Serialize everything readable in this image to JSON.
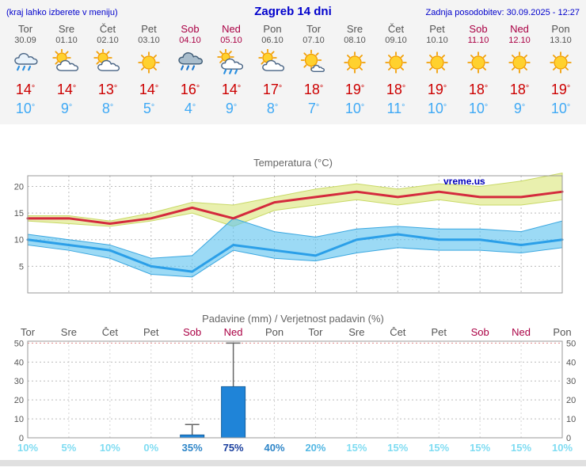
{
  "header": {
    "hint": "(kraj lahko izberete v meniju)",
    "title": "Zagreb 14 dni",
    "updated": "Zadnja posodobitev: 30.09.2025 - 12:27"
  },
  "units": {
    "degree": "°",
    "percent": "%"
  },
  "colors": {
    "link_blue": "#0000cc",
    "day_gray": "#555555",
    "weekend_red": "#aa0044",
    "hi_red": "#cc0000",
    "lo_blue": "#3fa9f5",
    "max_line": "#d42a3d",
    "min_line": "#2b9fe8",
    "max_band_fill": "#e9f0ae",
    "max_band_edge": "#c9d967",
    "min_band_fill": "#5fc3ef",
    "min_band_edge": "#3aa7e0",
    "bar_fill": "#1f84d8",
    "bar_edge": "#15619f",
    "whisker": "#666666",
    "grid": "#bbbbbb",
    "grid_50": "#e08888",
    "frame": "#999999",
    "prob_low": "#7fdcf2",
    "prob_mid": "#54b8e4",
    "prob_high": "#2f86c8",
    "prob_very_high": "#1a3f9e"
  },
  "days": [
    {
      "name": "Tor",
      "date": "30.09",
      "weekend": false,
      "icon": "rain",
      "hi": "14",
      "lo": "10"
    },
    {
      "name": "Sre",
      "date": "01.10",
      "weekend": false,
      "icon": "partly",
      "hi": "14",
      "lo": "9"
    },
    {
      "name": "Čet",
      "date": "02.10",
      "weekend": false,
      "icon": "partly",
      "hi": "13",
      "lo": "8"
    },
    {
      "name": "Pet",
      "date": "03.10",
      "weekend": false,
      "icon": "sunny",
      "hi": "14",
      "lo": "5"
    },
    {
      "name": "Sob",
      "date": "04.10",
      "weekend": true,
      "icon": "rain-heavy",
      "hi": "16",
      "lo": "4"
    },
    {
      "name": "Ned",
      "date": "05.10",
      "weekend": true,
      "icon": "showers",
      "hi": "14",
      "lo": "9"
    },
    {
      "name": "Pon",
      "date": "06.10",
      "weekend": false,
      "icon": "partly",
      "hi": "17",
      "lo": "8"
    },
    {
      "name": "Tor",
      "date": "07.10",
      "weekend": false,
      "icon": "mostly-sunny",
      "hi": "18",
      "lo": "7"
    },
    {
      "name": "Sre",
      "date": "08.10",
      "weekend": false,
      "icon": "sunny",
      "hi": "19",
      "lo": "10"
    },
    {
      "name": "Čet",
      "date": "09.10",
      "weekend": false,
      "icon": "sunny",
      "hi": "18",
      "lo": "11"
    },
    {
      "name": "Pet",
      "date": "10.10",
      "weekend": false,
      "icon": "sunny",
      "hi": "19",
      "lo": "10"
    },
    {
      "name": "Sob",
      "date": "11.10",
      "weekend": true,
      "icon": "sunny",
      "hi": "18",
      "lo": "10"
    },
    {
      "name": "Ned",
      "date": "12.10",
      "weekend": true,
      "icon": "sunny",
      "hi": "18",
      "lo": "9"
    },
    {
      "name": "Pon",
      "date": "13.10",
      "weekend": false,
      "icon": "sunny",
      "hi": "19",
      "lo": "10"
    }
  ],
  "chart_data": [
    {
      "type": "line",
      "title": "Temperatura (°C)",
      "watermark": "vreme.us",
      "categories": [
        "Tor 30.09",
        "Sre 01.10",
        "Čet 02.10",
        "Pet 03.10",
        "Sob 04.10",
        "Ned 05.10",
        "Pon 06.10",
        "Tor 07.10",
        "Sre 08.10",
        "Čet 09.10",
        "Pet 10.10",
        "Sob 11.10",
        "Ned 12.10",
        "Pon 13.10"
      ],
      "ylim": [
        0,
        22
      ],
      "yticks": [
        5,
        10,
        15,
        20
      ],
      "grid": true,
      "series": [
        {
          "name": "max_temp",
          "values": [
            14,
            14,
            13,
            14,
            16,
            14,
            17,
            18,
            19,
            18,
            19,
            18,
            18,
            19
          ]
        },
        {
          "name": "min_temp",
          "values": [
            10,
            9,
            8,
            5,
            4,
            9,
            8,
            7,
            10,
            11,
            10,
            10,
            9,
            10
          ]
        },
        {
          "name": "max_band_upper",
          "values": [
            14.5,
            14.5,
            13.5,
            15,
            17,
            16.5,
            18,
            19.5,
            20.5,
            19.5,
            20.5,
            20,
            21,
            22.5
          ]
        },
        {
          "name": "max_band_lower",
          "values": [
            13.5,
            13,
            12.5,
            13.5,
            15,
            12.5,
            15.5,
            16.5,
            17.5,
            16.5,
            17.5,
            16.5,
            16.5,
            17.5
          ]
        },
        {
          "name": "min_band_upper",
          "values": [
            11,
            10,
            9,
            6.5,
            7,
            14,
            11.5,
            10.5,
            12,
            12.5,
            12,
            12,
            11.5,
            13.5
          ]
        },
        {
          "name": "min_band_lower",
          "values": [
            9,
            8,
            6.5,
            3.5,
            3,
            8,
            6.5,
            6,
            7.5,
            8.5,
            8,
            8,
            7.5,
            8.5
          ]
        }
      ]
    },
    {
      "type": "bar",
      "title": "Padavine (mm) / Verjetnost padavin (%)",
      "categories": [
        "Tor",
        "Sre",
        "Čet",
        "Pet",
        "Sob",
        "Ned",
        "Pon",
        "Tor",
        "Sre",
        "Čet",
        "Pet",
        "Sob",
        "Ned",
        "Pon"
      ],
      "weekend_indices": [
        4,
        5,
        11,
        12
      ],
      "precip_mm": [
        0,
        0,
        0,
        0,
        1.5,
        27,
        0,
        0,
        0,
        0,
        0,
        0,
        0,
        0
      ],
      "precip_max_mm": [
        0,
        0,
        0,
        0,
        7,
        50,
        0,
        0,
        0,
        0,
        0,
        0,
        0,
        0
      ],
      "probability_pct": [
        10,
        5,
        10,
        0,
        35,
        75,
        40,
        20,
        15,
        15,
        15,
        15,
        15,
        10
      ],
      "ylim": [
        0,
        51
      ],
      "yticks": [
        0,
        10,
        20,
        30,
        40,
        50
      ],
      "grid": true
    }
  ]
}
